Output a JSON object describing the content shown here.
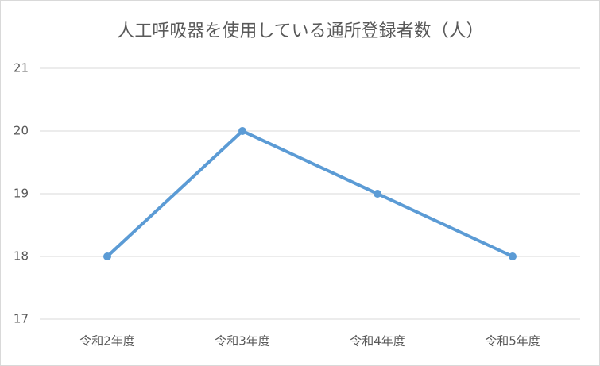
{
  "chart_data": {
    "type": "line",
    "title": "人工呼吸器を使用している通所登録者数（人）",
    "categories": [
      "令和2年度",
      "令和3年度",
      "令和4年度",
      "令和5年度"
    ],
    "values": [
      18,
      20,
      19,
      18
    ],
    "color": "#5b9bd5",
    "ylim": [
      17,
      21
    ],
    "yticks": [
      17,
      18,
      19,
      20,
      21
    ],
    "grid": true
  }
}
